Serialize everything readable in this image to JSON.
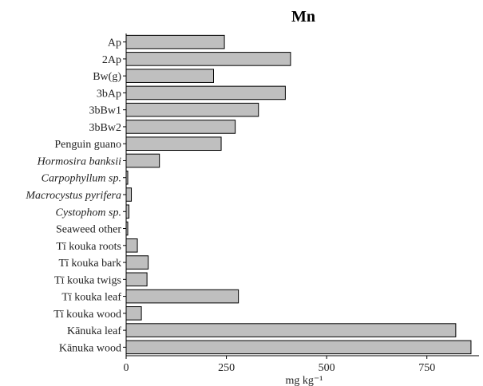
{
  "chart_data": {
    "type": "bar",
    "orientation": "horizontal",
    "title": "Mn",
    "xlabel": "mg kg⁻¹",
    "ylabel": "",
    "xlim": [
      0,
      880
    ],
    "xticks": [
      0,
      250,
      500,
      750
    ],
    "grid": false,
    "bar_color": "#bfbfbf",
    "categories": [
      {
        "label": "Ap",
        "italic": false
      },
      {
        "label": "2Ap",
        "italic": false
      },
      {
        "label": "Bw(g)",
        "italic": false
      },
      {
        "label": "3bAp",
        "italic": false
      },
      {
        "label": "3bBw1",
        "italic": false
      },
      {
        "label": "3bBw2",
        "italic": false
      },
      {
        "label": "Penguin guano",
        "italic": false
      },
      {
        "label": "Hormosira banksii",
        "italic": true
      },
      {
        "label": "Carpophyllum sp.",
        "italic": true
      },
      {
        "label": "Macrocystus pyrifera",
        "italic": true
      },
      {
        "label": "Cystophom sp.",
        "italic": true
      },
      {
        "label": "Seaweed other",
        "italic": false
      },
      {
        "label": "Tī kouka roots",
        "italic": false
      },
      {
        "label": "Tī kouka bark",
        "italic": false
      },
      {
        "label": "Tī kouka twigs",
        "italic": false
      },
      {
        "label": "Tī kouka leaf",
        "italic": false
      },
      {
        "label": "Tī kouka wood",
        "italic": false
      },
      {
        "label": "Kānuka leaf",
        "italic": false
      },
      {
        "label": "Kānuka wood",
        "italic": false
      }
    ],
    "values": [
      245,
      410,
      218,
      397,
      330,
      272,
      237,
      83,
      4,
      13,
      7,
      4,
      28,
      55,
      52,
      280,
      38,
      822,
      860
    ]
  }
}
